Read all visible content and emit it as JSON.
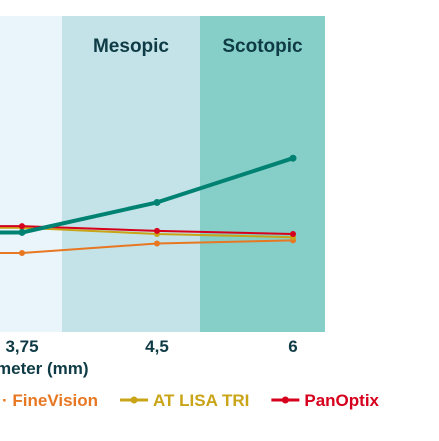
{
  "chart_data": {
    "type": "line",
    "xlabel": "meter (mm)",
    "x_ticks": [
      "3,75",
      "4,5",
      "6"
    ],
    "x_values": [
      3.75,
      4.5,
      6
    ],
    "zones": [
      {
        "label": "",
        "color": "#eaf5fb"
      },
      {
        "label": "Mesopic",
        "color": "#c3e3e8"
      },
      {
        "label": "Scotopic",
        "color": "#86cec8"
      }
    ],
    "series": [
      {
        "name": "FineVision",
        "color": "#e87722",
        "values": [
          0.25,
          0.28,
          0.29
        ],
        "legend_prefix": "·"
      },
      {
        "name": "AT LISA TRI",
        "color": "#c8a416",
        "values": [
          0.33,
          0.31,
          0.3
        ]
      },
      {
        "name": "PanOptix",
        "color": "#d6001c",
        "values": [
          0.335,
          0.32,
          0.31
        ]
      },
      {
        "name": "",
        "color": "#008272",
        "values": [
          0.315,
          0.41,
          0.55
        ]
      }
    ],
    "ylim": [
      0,
      1
    ],
    "grid": false,
    "legend_position": "bottom"
  }
}
